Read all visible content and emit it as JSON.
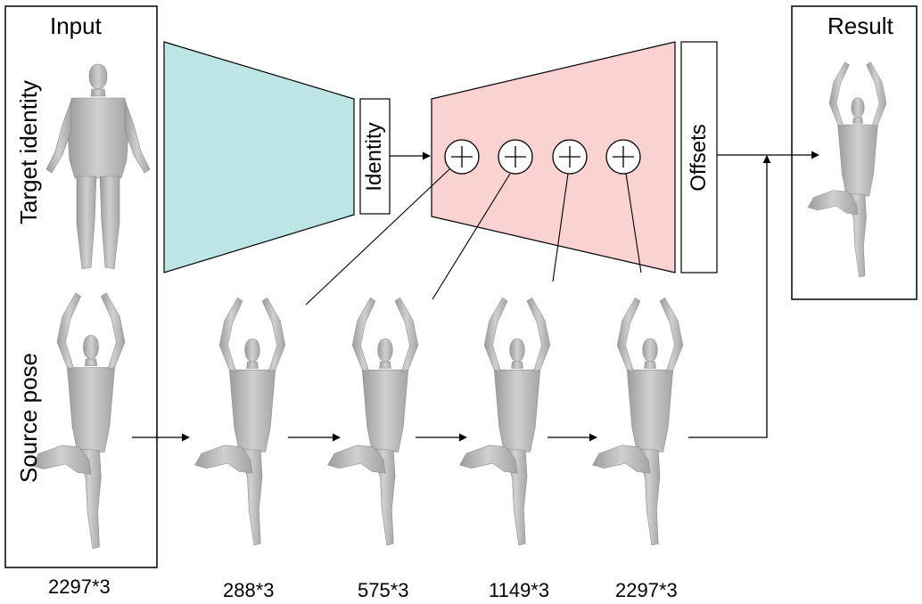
{
  "input": {
    "title": "Input",
    "target_identity_label": "Target identity",
    "source_pose_label": "Source pose",
    "size_label": "2297*3"
  },
  "network": {
    "encoder_color": "#bde5e6",
    "decoder_color": "#f9d2d1",
    "identity_label": "Identity",
    "offsets_label": "Offsets",
    "add_ops": [
      "+",
      "+",
      "+",
      "+"
    ]
  },
  "result": {
    "title": "Result"
  },
  "downsampled": [
    {
      "size_label": "288*3"
    },
    {
      "size_label": "575*3"
    },
    {
      "size_label": "1149*3"
    },
    {
      "size_label": "2297*3"
    }
  ],
  "mesh_color": "#b9b9b9"
}
